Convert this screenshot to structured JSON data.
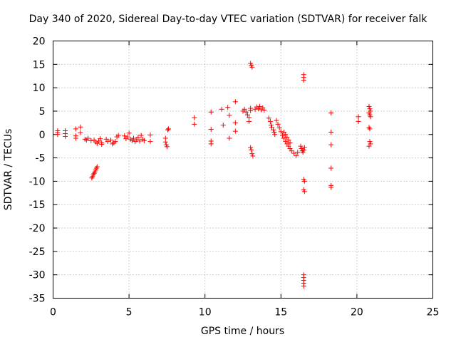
{
  "chart_data": {
    "type": "scatter",
    "title": "Day 340 of 2020, Sidereal Day-to-day VTEC variation (SDTVAR) for receiver falk",
    "xlabel": "GPS time / hours",
    "ylabel": "SDTVAR / TECUs",
    "xlim": [
      0,
      25
    ],
    "ylim": [
      -35,
      20
    ],
    "xticks": [
      0,
      5,
      10,
      15,
      20,
      25
    ],
    "yticks": [
      -35,
      -30,
      -25,
      -20,
      -15,
      -10,
      -5,
      0,
      5,
      10,
      15,
      20
    ],
    "grid": true,
    "marker": "plus",
    "color": "#ff0000",
    "series": [
      {
        "name": "SDTVAR",
        "points": [
          [
            0.3,
            0.8
          ],
          [
            0.3,
            0.4
          ],
          [
            0.3,
            0.0
          ],
          [
            0.8,
            0.8
          ],
          [
            0.8,
            0.2
          ],
          [
            0.8,
            -0.4
          ],
          [
            1.5,
            1.2
          ],
          [
            1.5,
            -0.3
          ],
          [
            1.5,
            -0.8
          ],
          [
            1.8,
            1.6
          ],
          [
            1.8,
            0.4
          ],
          [
            2.1,
            -1.0
          ],
          [
            2.2,
            -1.2
          ],
          [
            2.3,
            -0.8
          ],
          [
            2.5,
            -1.3
          ],
          [
            2.55,
            -9.3
          ],
          [
            2.6,
            -9.0
          ],
          [
            2.65,
            -8.6
          ],
          [
            2.7,
            -8.3
          ],
          [
            2.75,
            -8.0
          ],
          [
            2.8,
            -7.6
          ],
          [
            2.85,
            -7.2
          ],
          [
            2.9,
            -6.9
          ],
          [
            2.7,
            -1.2
          ],
          [
            2.8,
            -1.6
          ],
          [
            2.9,
            -1.9
          ],
          [
            3.0,
            -1.4
          ],
          [
            3.1,
            -0.9
          ],
          [
            3.2,
            -1.8
          ],
          [
            3.2,
            -2.1
          ],
          [
            3.5,
            -1.0
          ],
          [
            3.6,
            -1.5
          ],
          [
            3.8,
            -1.2
          ],
          [
            3.9,
            -2.0
          ],
          [
            4.0,
            -1.8
          ],
          [
            4.1,
            -1.5
          ],
          [
            4.2,
            -0.5
          ],
          [
            4.3,
            -0.2
          ],
          [
            4.7,
            -0.3
          ],
          [
            4.8,
            -0.9
          ],
          [
            4.9,
            -0.5
          ],
          [
            5.0,
            0.3
          ],
          [
            5.1,
            -1.0
          ],
          [
            5.2,
            -1.3
          ],
          [
            5.3,
            -0.8
          ],
          [
            5.4,
            -1.5
          ],
          [
            5.5,
            -1.1
          ],
          [
            5.6,
            -0.6
          ],
          [
            5.7,
            -1.4
          ],
          [
            5.8,
            -0.2
          ],
          [
            5.9,
            -1.0
          ],
          [
            6.0,
            -1.3
          ],
          [
            6.4,
            -0.1
          ],
          [
            6.4,
            -1.5
          ],
          [
            7.4,
            -0.8
          ],
          [
            7.4,
            -1.6
          ],
          [
            7.45,
            -2.2
          ],
          [
            7.5,
            -2.6
          ],
          [
            7.55,
            1.0
          ],
          [
            7.6,
            1.2
          ],
          [
            9.3,
            3.6
          ],
          [
            9.3,
            2.2
          ],
          [
            10.4,
            4.8
          ],
          [
            10.4,
            1.1
          ],
          [
            10.4,
            -1.4
          ],
          [
            10.4,
            -2.0
          ],
          [
            11.1,
            5.4
          ],
          [
            11.2,
            2.0
          ],
          [
            11.5,
            5.8
          ],
          [
            11.6,
            4.1
          ],
          [
            11.6,
            -0.8
          ],
          [
            12.0,
            7.0
          ],
          [
            12.0,
            2.5
          ],
          [
            12.0,
            0.7
          ],
          [
            12.5,
            5.0
          ],
          [
            12.6,
            5.4
          ],
          [
            12.7,
            4.8
          ],
          [
            12.8,
            4.2
          ],
          [
            12.9,
            3.6
          ],
          [
            12.9,
            2.8
          ],
          [
            13.0,
            5.6
          ],
          [
            13.0,
            5.1
          ],
          [
            13.0,
            15.2
          ],
          [
            13.05,
            14.8
          ],
          [
            13.1,
            14.4
          ],
          [
            13.0,
            -2.8
          ],
          [
            13.05,
            -3.3
          ],
          [
            13.1,
            -4.1
          ],
          [
            13.15,
            -4.6
          ],
          [
            13.3,
            5.4
          ],
          [
            13.4,
            5.9
          ],
          [
            13.5,
            5.5
          ],
          [
            13.6,
            6.0
          ],
          [
            13.7,
            5.3
          ],
          [
            13.8,
            5.7
          ],
          [
            13.9,
            5.2
          ],
          [
            14.2,
            3.5
          ],
          [
            14.3,
            2.8
          ],
          [
            14.35,
            2.0
          ],
          [
            14.4,
            1.5
          ],
          [
            14.5,
            1.0
          ],
          [
            14.55,
            0.5
          ],
          [
            14.6,
            0.0
          ],
          [
            14.7,
            3.0
          ],
          [
            14.8,
            2.2
          ],
          [
            14.9,
            1.4
          ],
          [
            15.0,
            0.6
          ],
          [
            15.1,
            -0.2
          ],
          [
            15.2,
            -0.8
          ],
          [
            15.3,
            -1.5
          ],
          [
            15.4,
            -2.0
          ],
          [
            15.5,
            -2.5
          ],
          [
            15.6,
            -3.0
          ],
          [
            15.7,
            -3.5
          ],
          [
            15.85,
            -4.0
          ],
          [
            16.0,
            -4.5
          ],
          [
            16.1,
            -3.8
          ],
          [
            15.2,
            0.5
          ],
          [
            15.3,
            0.0
          ],
          [
            15.4,
            -0.6
          ],
          [
            15.5,
            -1.2
          ],
          [
            15.6,
            -1.8
          ],
          [
            16.3,
            -2.5
          ],
          [
            16.35,
            -3.0
          ],
          [
            16.4,
            -3.5
          ],
          [
            16.45,
            -3.8
          ],
          [
            16.5,
            -3.3
          ],
          [
            16.55,
            -2.8
          ],
          [
            16.5,
            12.8
          ],
          [
            16.5,
            12.2
          ],
          [
            16.5,
            11.6
          ],
          [
            16.5,
            -9.6
          ],
          [
            16.55,
            -10.0
          ],
          [
            16.5,
            -11.8
          ],
          [
            16.55,
            -12.2
          ],
          [
            16.5,
            -30.0
          ],
          [
            16.5,
            -30.6
          ],
          [
            16.5,
            -31.2
          ],
          [
            16.5,
            -31.8
          ],
          [
            16.5,
            -32.4
          ],
          [
            18.3,
            4.6
          ],
          [
            18.3,
            0.5
          ],
          [
            18.3,
            -2.2
          ],
          [
            18.3,
            -7.2
          ],
          [
            18.3,
            -10.9
          ],
          [
            18.3,
            -11.3
          ],
          [
            20.1,
            3.8
          ],
          [
            20.1,
            2.8
          ],
          [
            20.8,
            6.0
          ],
          [
            20.85,
            5.5
          ],
          [
            20.9,
            5.0
          ],
          [
            20.8,
            4.6
          ],
          [
            20.85,
            4.2
          ],
          [
            20.9,
            3.8
          ],
          [
            20.8,
            1.5
          ],
          [
            20.85,
            1.2
          ],
          [
            20.85,
            -1.5
          ],
          [
            20.9,
            -2.0
          ],
          [
            20.8,
            -2.5
          ]
        ]
      }
    ]
  }
}
